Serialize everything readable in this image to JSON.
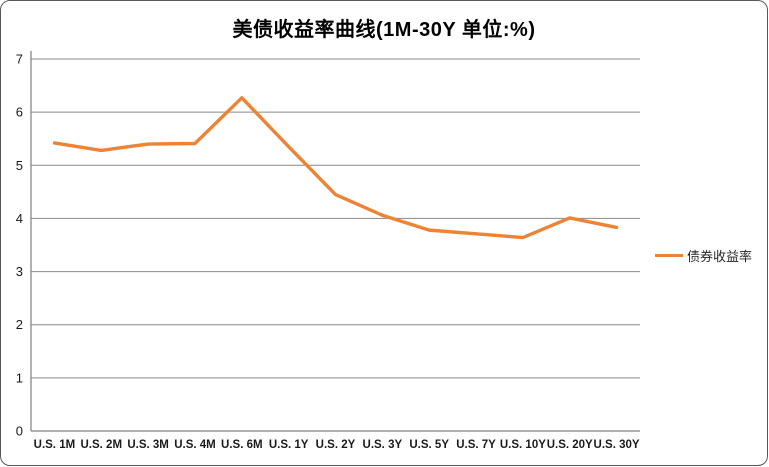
{
  "title": "美债收益率曲线(1M-30Y 单位:%)",
  "legend": {
    "label": "债券收益率"
  },
  "chart_data": {
    "type": "line",
    "title": "美债收益率曲线(1M-30Y 单位:%)",
    "categories": [
      "U.S. 1M",
      "U.S. 2M",
      "U.S. 3M",
      "U.S. 4M",
      "U.S. 6M",
      "U.S. 1Y",
      "U.S. 2Y",
      "U.S. 3Y",
      "U.S. 5Y",
      "U.S. 7Y",
      "U.S. 10Y",
      "U.S. 20Y",
      "U.S. 30Y"
    ],
    "series": [
      {
        "name": "债券收益率",
        "values": [
          5.42,
          5.28,
          5.4,
          5.41,
          6.27,
          5.35,
          4.45,
          4.06,
          3.78,
          3.71,
          3.64,
          4.01,
          3.83
        ]
      }
    ],
    "xlabel": "",
    "ylabel": "",
    "ylim": [
      0,
      7
    ],
    "yticks": [
      0,
      1,
      2,
      3,
      4,
      5,
      6,
      7
    ],
    "grid": "horizontal",
    "legend_position": "right"
  },
  "colors": {
    "line": "#ED8335",
    "grid": "#898989",
    "axis": "#7F7F7F",
    "tick_text": "#1a1a1a",
    "title_text": "#000000"
  }
}
